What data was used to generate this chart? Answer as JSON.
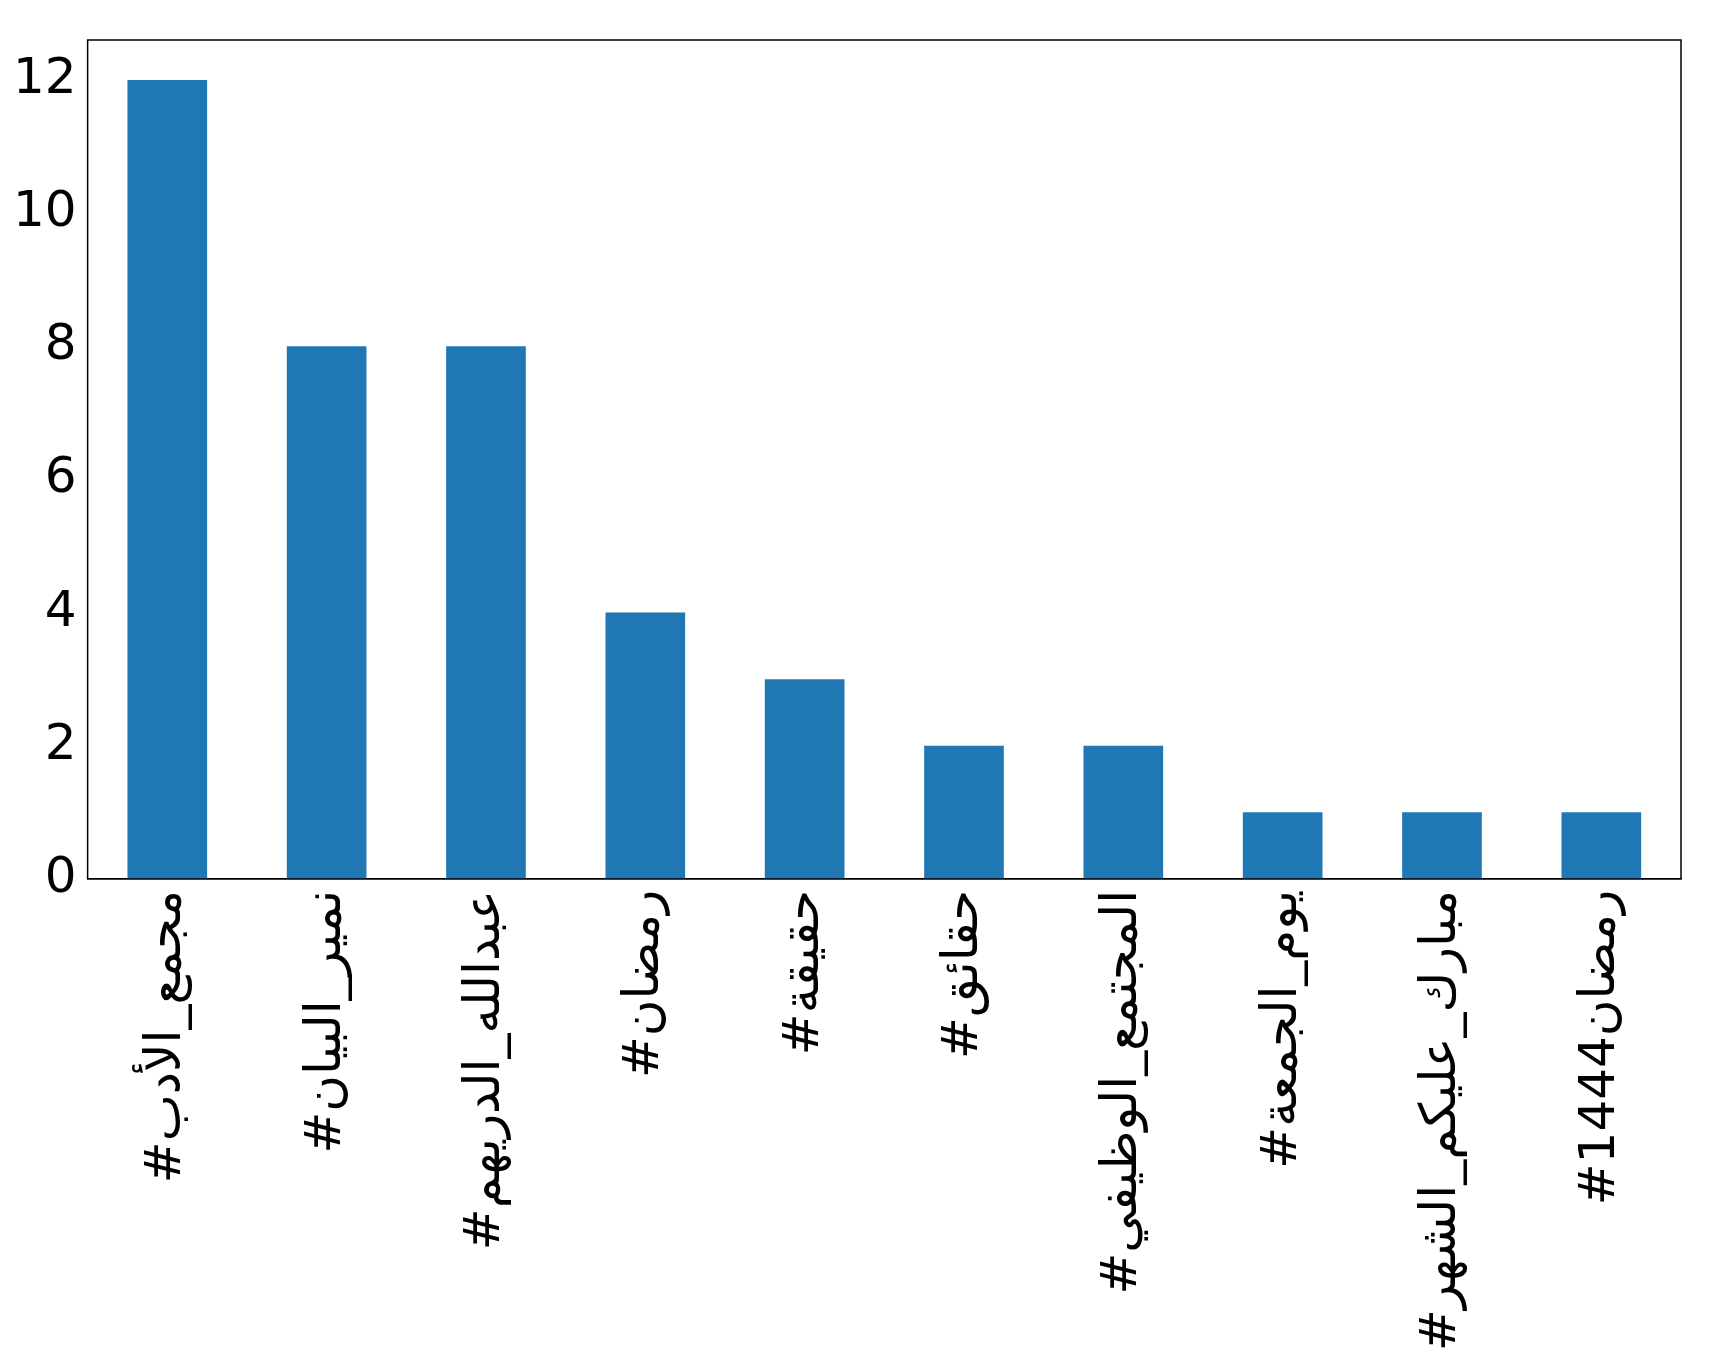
{
  "chart_data": {
    "type": "bar",
    "categories": [
      "#مجمع_الأدب",
      "#نمير_البيان",
      "#عبدالله_الدريهم",
      "#رمضان",
      "#حقيقة",
      "#حقائق",
      "#المجتمع_الوظيفي",
      "#يوم_الجمعة",
      "#مبارك_عليكم_الشهر",
      "#رمضان1444"
    ],
    "values": [
      12,
      8,
      8,
      4,
      3,
      2,
      2,
      1,
      1,
      1
    ],
    "color": "#1f77b4",
    "ylim": [
      0,
      12.6
    ],
    "yticks": [
      0,
      2,
      4,
      6,
      8,
      10,
      12
    ],
    "grid": false,
    "legend": false
  }
}
